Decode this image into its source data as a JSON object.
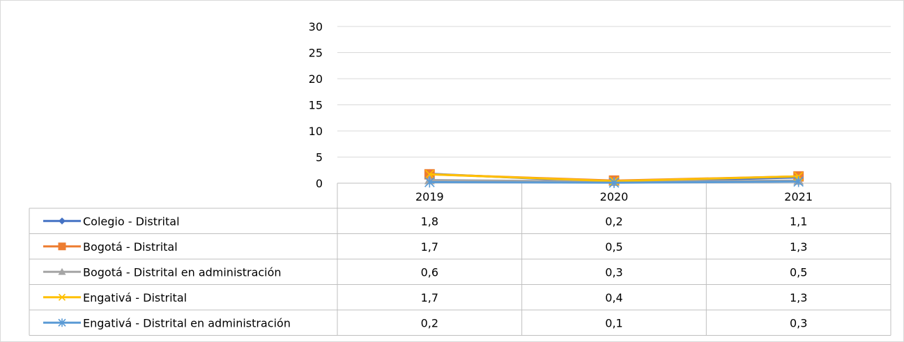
{
  "chart_data": {
    "type": "line",
    "title": "",
    "xlabel": "",
    "ylabel": "",
    "ylim": [
      0,
      30
    ],
    "yticks": [
      0,
      5,
      10,
      15,
      20,
      25,
      30
    ],
    "grid": true,
    "legend": "data-table",
    "categories": [
      "2019",
      "2020",
      "2021"
    ],
    "series": [
      {
        "name": "Colegio - Distrital",
        "values": [
          1.8,
          0.2,
          1.1
        ],
        "value_labels": [
          "1,8",
          "0,2",
          "1,1"
        ],
        "color": "#4472C4",
        "marker": "diamond"
      },
      {
        "name": "Bogotá - Distrital",
        "values": [
          1.7,
          0.5,
          1.3
        ],
        "value_labels": [
          "1,7",
          "0,5",
          "1,3"
        ],
        "color": "#ED7D31",
        "marker": "square"
      },
      {
        "name": "Bogotá - Distrital en administración",
        "values": [
          0.6,
          0.3,
          0.5
        ],
        "value_labels": [
          "0,6",
          "0,3",
          "0,5"
        ],
        "color": "#A5A5A5",
        "marker": "triangle"
      },
      {
        "name": "Engativá - Distrital",
        "values": [
          1.7,
          0.4,
          1.3
        ],
        "value_labels": [
          "1,7",
          "0,4",
          "1,3"
        ],
        "color": "#FFC000",
        "marker": "x"
      },
      {
        "name": "Engativá - Distrital en administración",
        "values": [
          0.2,
          0.1,
          0.3
        ],
        "value_labels": [
          "0,2",
          "0,1",
          "0,3"
        ],
        "color": "#5B9BD5",
        "marker": "star"
      }
    ]
  }
}
